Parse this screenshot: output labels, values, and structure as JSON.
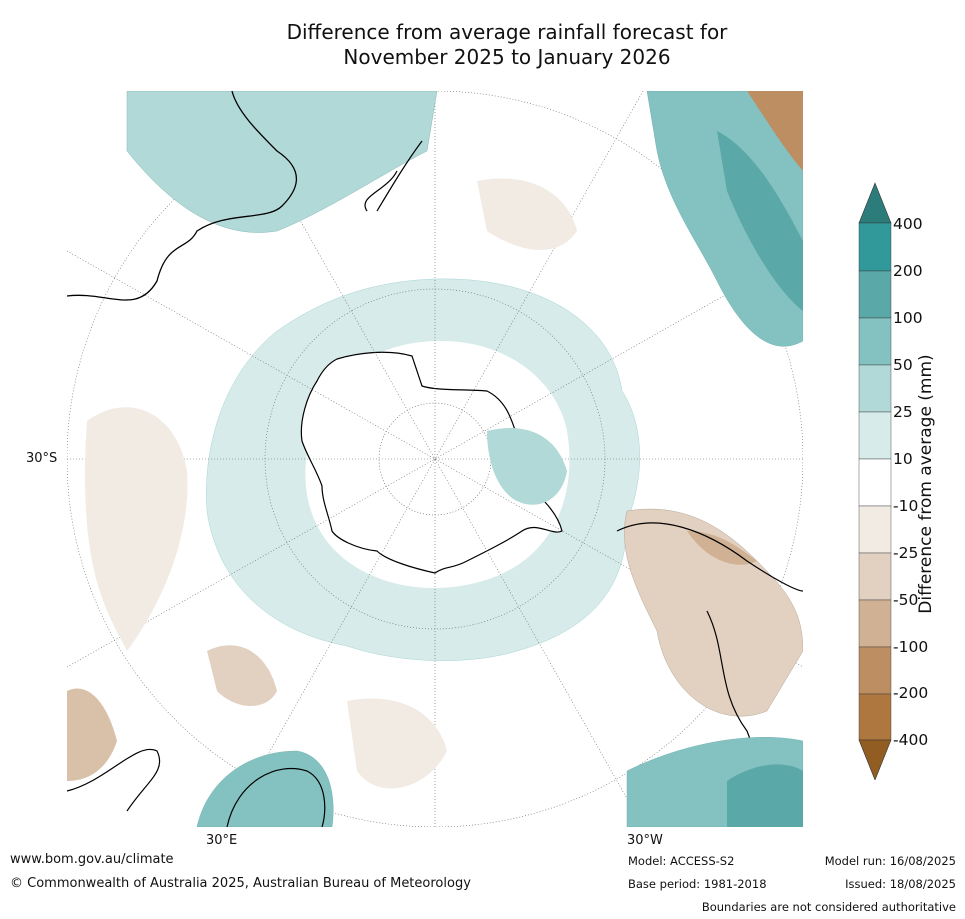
{
  "title": {
    "line1": "Difference from average rainfall forecast for",
    "line2": "November 2025 to January 2026"
  },
  "map": {
    "projection": "south polar stereographic",
    "lat_labels": [
      "30°S"
    ],
    "lon_labels": [
      "30°E",
      "30°W"
    ],
    "note": ""
  },
  "colorbar": {
    "label": "Difference from average (mm)",
    "ticks": [
      "400",
      "200",
      "100",
      "50",
      "25",
      "10",
      "-10",
      "-25",
      "-50",
      "-100",
      "-200",
      "-400"
    ],
    "colors": {
      "gt400": "#2b7c7a",
      "200_400": "#31999a",
      "100_200": "#5aa9a8",
      "50_100": "#84c2c1",
      "25_50": "#b1d9d8",
      "10_25": "#d6ebea",
      "neutral": "#ffffff",
      "m10_m25": "#f1ebe4",
      "m25_m50": "#e2d0c1",
      "m50_m100": "#d0b193",
      "m100_m200": "#be8e63",
      "m200_m400": "#ad773f",
      "lt_m400": "#915d23"
    }
  },
  "footer": {
    "website": "www.bom.gov.au/climate",
    "copyright": "© Commonwealth of Australia 2025, Australian Bureau of Meteorology",
    "model": "Model: ACCESS-S2",
    "base_period": "Base period: 1981-2018",
    "model_run": "Model run: 16/08/2025",
    "issued": "Issued: 18/08/2025",
    "boundaries": "Boundaries are not considered authoritative"
  }
}
